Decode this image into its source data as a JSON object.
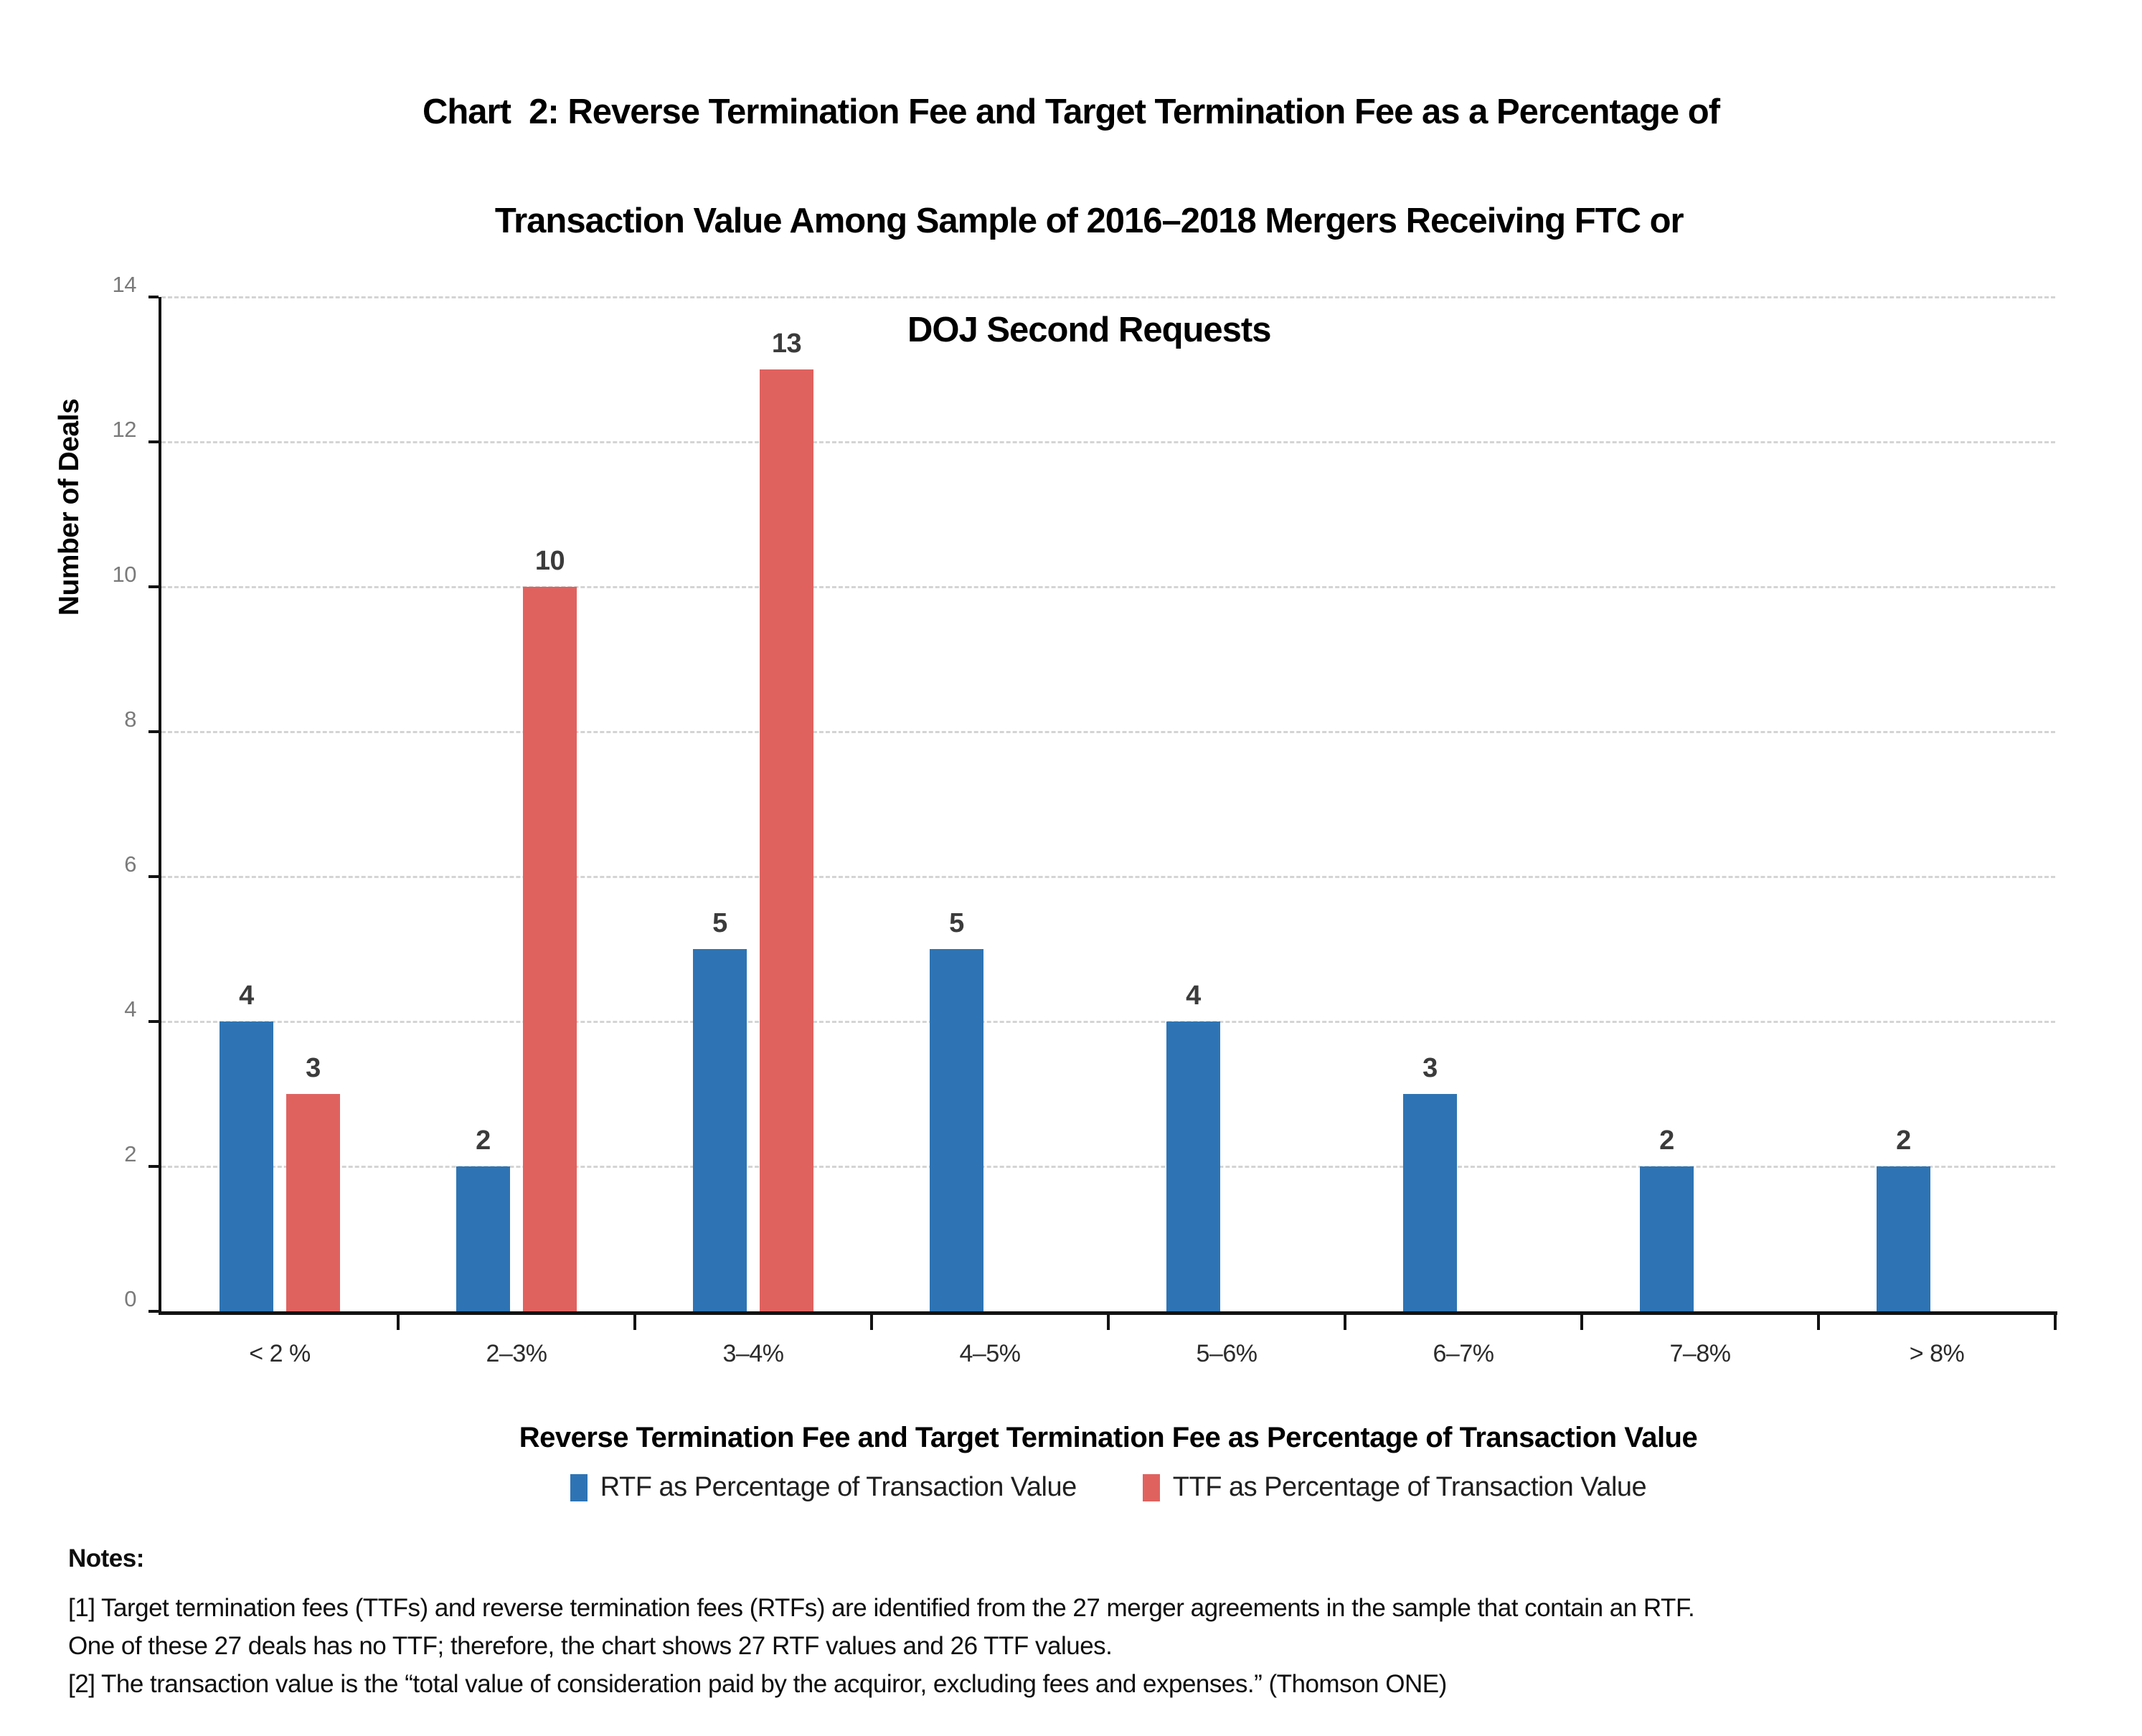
{
  "chart_data": {
    "type": "bar",
    "title": "Chart  2: Reverse Termination Fee and Target Termination Fee as a Percentage of Transaction Value Among Sample of 2016–2018 Mergers Receiving FTC or DOJ Second Requests",
    "title_lines": [
      "Chart  2: Reverse Termination Fee and Target Termination Fee as a Percentage of",
      "Transaction Value Among Sample of 2016–2018 Mergers Receiving FTC or",
      "DOJ Second Requests"
    ],
    "categories": [
      "< 2 %",
      "2–3%",
      "3–4%",
      "4–5%",
      "5–6%",
      "6–7%",
      "7–8%",
      "> 8%"
    ],
    "series": [
      {
        "name": "RTF as Percentage of Transaction Value",
        "color": "#2e74b4",
        "values": [
          4,
          2,
          5,
          5,
          4,
          3,
          2,
          2
        ]
      },
      {
        "name": "TTF as Percentage of Transaction Value",
        "color": "#e0625f",
        "values": [
          3,
          10,
          13,
          null,
          null,
          null,
          null,
          null
        ]
      }
    ],
    "xlabel": "Reverse Termination Fee and Target Termination Fee as Percentage of Transaction Value",
    "ylabel": "Number of Deals",
    "ylim": [
      0,
      14
    ],
    "yticks": [
      0,
      2,
      4,
      6,
      8,
      10,
      12,
      14
    ],
    "grid": "horizontal-dashed",
    "legend_position": "bottom",
    "colors": {
      "axis": "#131313",
      "gridline": "#d4d4d4",
      "tick_label": "#7a7a7a",
      "bar_label": "#3b3b3b"
    }
  },
  "notes": {
    "heading": "Notes:",
    "lines": [
      "[1] Target termination fees (TTFs) and reverse termination fees (RTFs) are identified from the 27 merger agreements in the sample that contain an RTF.",
      "One of these 27 deals has no TTF; therefore, the chart shows 27 RTF values and 26 TTF values.",
      "[2] The transaction value is the “total value of consideration paid by the acquiror, excluding fees and expenses.” (Thomson ONE)"
    ]
  }
}
